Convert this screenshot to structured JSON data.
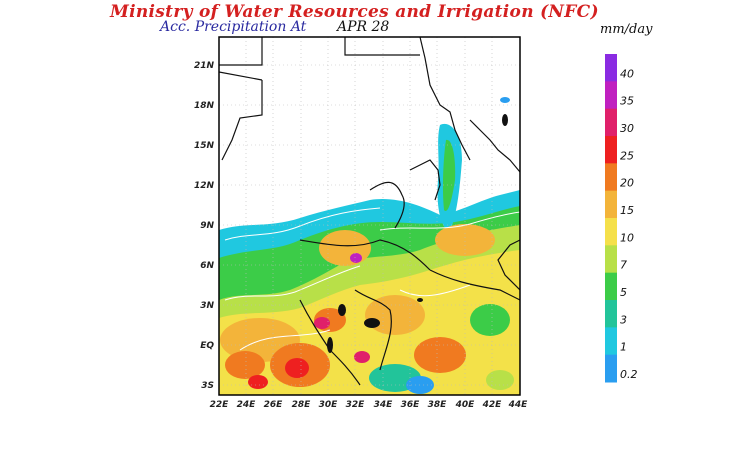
{
  "header": {
    "title": "Ministry of Water Resources and Irrigation (NFC)",
    "product_label": "Acc. Precipitation  At",
    "date": "APR 28",
    "units": "mm/day"
  },
  "map": {
    "lat_labels": [
      "21N",
      "18N",
      "15N",
      "12N",
      "9N",
      "6N",
      "3N",
      "EQ",
      "3S"
    ],
    "lon_labels": [
      "22E",
      "24E",
      "26E",
      "28E",
      "30E",
      "32E",
      "34E",
      "36E",
      "38E",
      "40E",
      "42E",
      "44E"
    ]
  },
  "colorbar": {
    "levels": [
      {
        "label": "40",
        "color": "#8a2be2"
      },
      {
        "label": "35",
        "color": "#c020c0"
      },
      {
        "label": "30",
        "color": "#e0206a"
      },
      {
        "label": "25",
        "color": "#ee2020"
      },
      {
        "label": "20",
        "color": "#f07a20"
      },
      {
        "label": "15",
        "color": "#f3b43a"
      },
      {
        "label": "10",
        "color": "#f5e04a"
      },
      {
        "label": "7",
        "color": "#b8e048"
      },
      {
        "label": "5",
        "color": "#3ccc48"
      },
      {
        "label": "3",
        "color": "#22c49a"
      },
      {
        "label": "1",
        "color": "#20c8e0"
      },
      {
        "label": "0.2",
        "color": "#2a9ef0"
      }
    ]
  }
}
